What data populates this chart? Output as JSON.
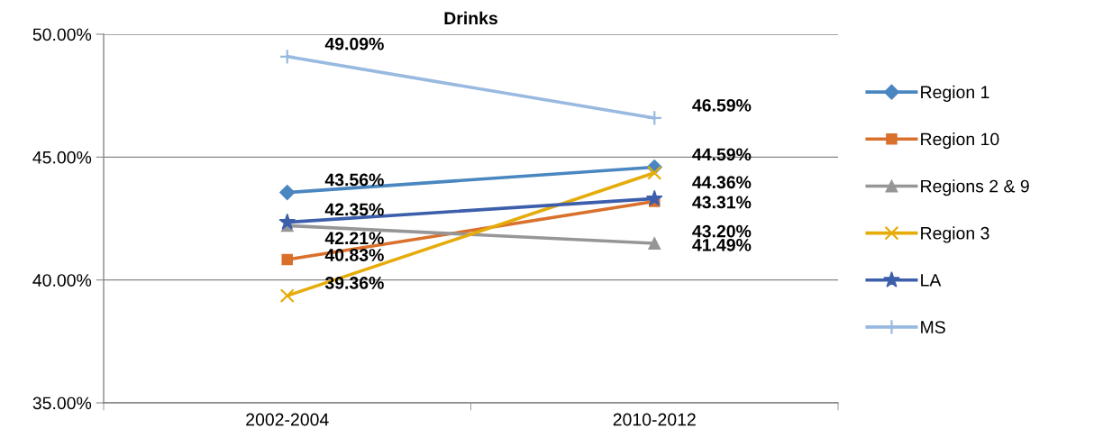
{
  "chart_data": {
    "type": "line",
    "title": "Drinks",
    "categories": [
      "2002-2004",
      "2010-2012"
    ],
    "series": [
      {
        "name": "Region 1",
        "color": "#4a86c0",
        "marker": "diamond",
        "values": [
          43.56,
          44.59
        ],
        "value_labels": [
          "43.56%",
          "44.59%"
        ]
      },
      {
        "name": "Region 10",
        "color": "#d9702b",
        "marker": "square",
        "values": [
          40.83,
          43.2
        ],
        "value_labels": [
          "40.83%",
          "43.20%"
        ]
      },
      {
        "name": "Regions 2 & 9",
        "color": "#969696",
        "marker": "triangle",
        "values": [
          42.21,
          41.49
        ],
        "value_labels": [
          "42.21%",
          "41.49%"
        ]
      },
      {
        "name": "Region 3",
        "color": "#e5ac0a",
        "marker": "cross",
        "values": [
          39.36,
          44.36
        ],
        "value_labels": [
          "39.36%",
          "44.36%"
        ]
      },
      {
        "name": "LA",
        "color": "#3d5fab",
        "marker": "star",
        "values": [
          42.35,
          43.31
        ],
        "value_labels": [
          "42.35%",
          "43.31%"
        ]
      },
      {
        "name": "MS",
        "color": "#98b9e0",
        "marker": "plus",
        "values": [
          49.09,
          46.59
        ],
        "value_labels": [
          "49.09%",
          "46.59%"
        ]
      }
    ],
    "ylim": [
      35,
      50
    ],
    "yticks": [
      {
        "value": 35,
        "label": "35.00%"
      },
      {
        "value": 40,
        "label": "40.00%"
      },
      {
        "value": 45,
        "label": "45.00%"
      },
      {
        "value": 50,
        "label": "50.00%"
      }
    ],
    "grid": "y",
    "legend": "right"
  }
}
